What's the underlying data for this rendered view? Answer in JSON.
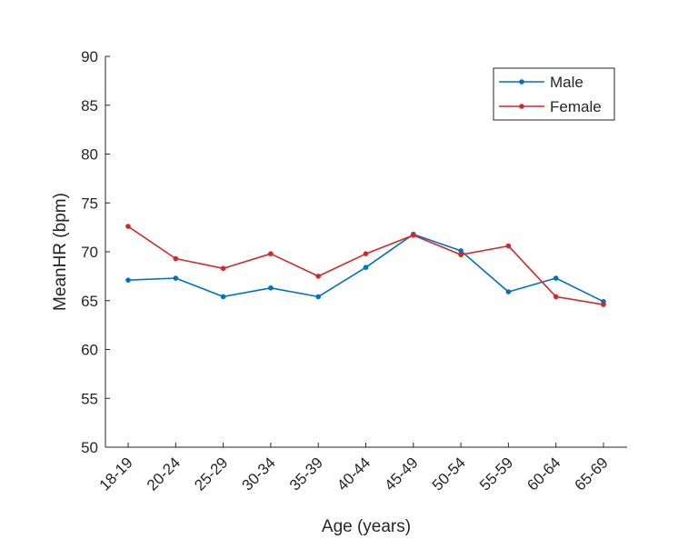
{
  "chart_data": {
    "type": "line",
    "title": "",
    "xlabel": "Age (years)",
    "ylabel": "MeanHR (bpm)",
    "categories": [
      "18-19",
      "20-24",
      "25-29",
      "30-34",
      "35-39",
      "40-44",
      "45-49",
      "50-54",
      "55-59",
      "60-64",
      "65-69"
    ],
    "ylim": [
      50,
      90
    ],
    "yticks": [
      50,
      55,
      60,
      65,
      70,
      75,
      80,
      85,
      90
    ],
    "yticks_labels": [
      "50",
      "55",
      "60",
      "65",
      "70",
      "75",
      "80",
      "85",
      "90"
    ],
    "grid": false,
    "legend_position": "top-right",
    "series": [
      {
        "name": "Male",
        "color": "#0072BD",
        "values": [
          67.1,
          67.3,
          65.4,
          66.3,
          65.4,
          68.4,
          71.8,
          70.1,
          65.9,
          67.3,
          64.9
        ]
      },
      {
        "name": "Female",
        "color": "#D62728",
        "values": [
          72.6,
          69.3,
          68.3,
          69.8,
          67.5,
          69.8,
          71.7,
          69.7,
          70.6,
          65.4,
          64.6
        ]
      }
    ]
  }
}
